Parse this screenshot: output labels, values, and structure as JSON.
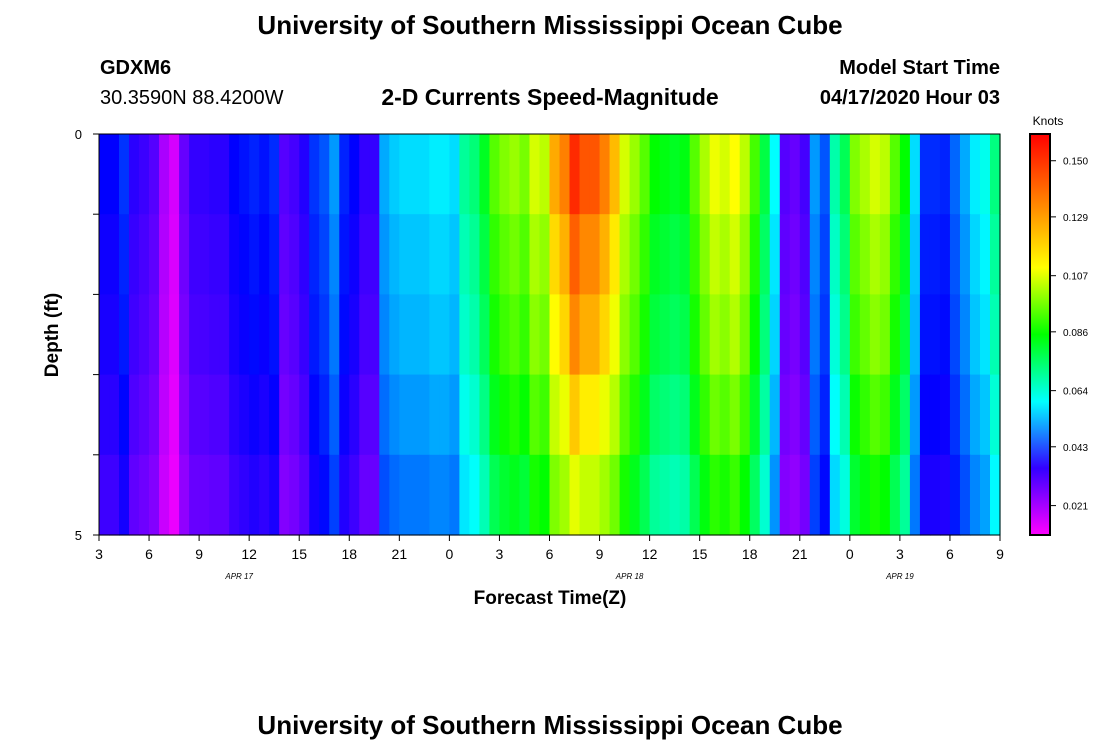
{
  "header": {
    "title": "University of Southern Mississippi Ocean Cube",
    "station": "GDXM6",
    "coords": "30.3590N 88.4200W",
    "plot_title": "2-D Currents Speed-Magnitude",
    "model_label": "Model Start Time",
    "model_time": "04/17/2020 Hour 03"
  },
  "footer": {
    "title": "University of Southern Mississippi Ocean Cube"
  },
  "chart_data": {
    "type": "heatmap",
    "title": "2-D Currents Speed-Magnitude",
    "xlabel": "Forecast Time(Z)",
    "ylabel": "Depth (ft)",
    "ylim": [
      0,
      5
    ],
    "y_tick_labels": [
      "0",
      "5"
    ],
    "x_tick_labels": [
      "3",
      "6",
      "9",
      "12",
      "15",
      "18",
      "21",
      "0",
      "3",
      "6",
      "9",
      "12",
      "15",
      "18",
      "21",
      "0",
      "3",
      "6",
      "9"
    ],
    "date_labels": [
      {
        "label": "APR 17",
        "hour_index": 14
      },
      {
        "label": "APR 18",
        "hour_index": 53
      },
      {
        "label": "APR 19",
        "hour_index": 80
      }
    ],
    "hours": 90,
    "depth_bins": 5,
    "colorbar": {
      "unit": "Knots",
      "ticks": [
        "0.150",
        "0.129",
        "0.107",
        "0.086",
        "0.064",
        "0.043",
        "0.021"
      ],
      "stops": [
        "#ff00ff",
        "#3300ff",
        "#00ffff",
        "#00ff00",
        "#ffff00",
        "#ff8000",
        "#ff0000"
      ]
    },
    "speed_profile_knots": [
      0.04,
      0.04,
      0.046,
      0.035,
      0.033,
      0.03,
      0.02,
      0.015,
      0.028,
      0.034,
      0.034,
      0.035,
      0.035,
      0.04,
      0.042,
      0.044,
      0.042,
      0.045,
      0.03,
      0.032,
      0.036,
      0.046,
      0.05,
      0.058,
      0.044,
      0.04,
      0.034,
      0.034,
      0.06,
      0.064,
      0.066,
      0.066,
      0.066,
      0.068,
      0.068,
      0.066,
      0.082,
      0.086,
      0.096,
      0.11,
      0.115,
      0.118,
      0.114,
      0.125,
      0.122,
      0.14,
      0.145,
      0.155,
      0.15,
      0.15,
      0.145,
      0.138,
      0.125,
      0.118,
      0.11,
      0.1,
      0.098,
      0.096,
      0.098,
      0.11,
      0.12,
      0.128,
      0.125,
      0.13,
      0.122,
      0.108,
      0.092,
      0.07,
      0.03,
      0.028,
      0.032,
      0.058,
      0.05,
      0.08,
      0.09,
      0.115,
      0.12,
      0.125,
      0.122,
      0.11,
      0.1,
      0.066,
      0.045,
      0.045,
      0.044,
      0.052,
      0.06,
      0.068,
      0.072,
      0.085
    ],
    "depth_factors": [
      1.0,
      0.96,
      0.93,
      0.88,
      0.82
    ]
  }
}
